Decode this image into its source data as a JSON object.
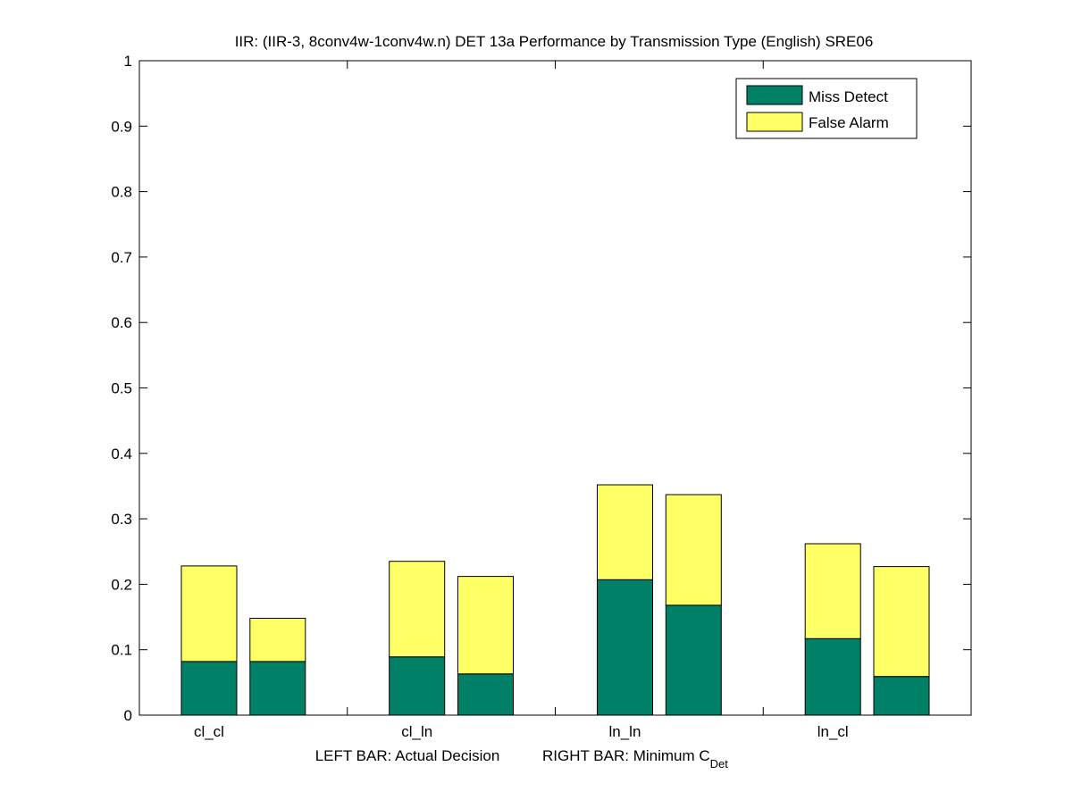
{
  "chart_data": {
    "type": "bar",
    "stacked": true,
    "title": "IIR: (IIR-3, 8conv4w-1conv4w.n) DET 13a Performance by Transmission Type (English) SRE06",
    "xlabel": {
      "left": "LEFT BAR: Actual Decision",
      "right_prefix": "RIGHT BAR: Minimum C",
      "right_subscript": "Det"
    },
    "ylabel": "",
    "ylim": [
      0,
      1
    ],
    "yticks": [
      "0",
      "0.1",
      "0.2",
      "0.3",
      "0.4",
      "0.5",
      "0.6",
      "0.7",
      "0.8",
      "0.9",
      "1"
    ],
    "grid": false,
    "legend_position": "top-right",
    "categories": [
      "cl_cl",
      "cl_ln",
      "ln_ln",
      "ln_cl"
    ],
    "bar_roles": [
      "Actual Decision",
      "Minimum C_Det"
    ],
    "series": [
      {
        "name": "Miss Detect",
        "color": "#008066",
        "actual_decision": [
          0.082,
          0.089,
          0.207,
          0.117
        ],
        "minimum_cdet": [
          0.082,
          0.063,
          0.168,
          0.059
        ]
      },
      {
        "name": "False Alarm",
        "color": "#ffff66",
        "actual_decision": [
          0.146,
          0.146,
          0.145,
          0.145
        ],
        "minimum_cdet": [
          0.066,
          0.149,
          0.169,
          0.168
        ]
      }
    ]
  }
}
